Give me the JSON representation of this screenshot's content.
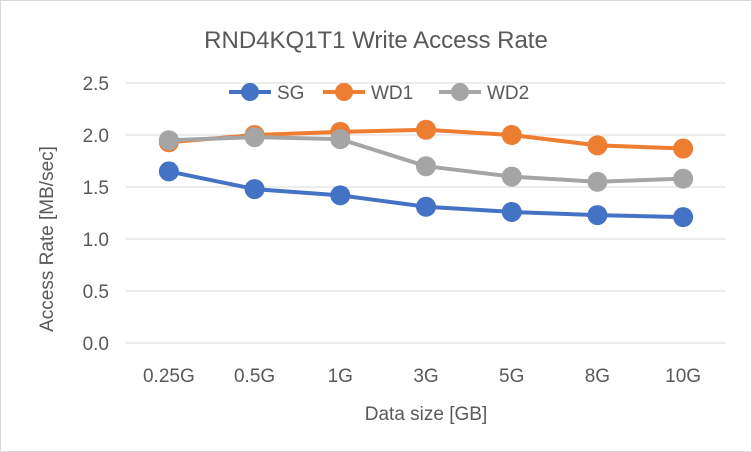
{
  "chart_data": {
    "type": "line",
    "title": "RND4KQ1T1 Write Access Rate",
    "xlabel": "Data size [GB]",
    "ylabel": "Access Rate [MB/sec]",
    "categories": [
      "0.25G",
      "0.5G",
      "1G",
      "3G",
      "5G",
      "8G",
      "10G"
    ],
    "ylim": [
      0,
      2.5
    ],
    "yticks": [
      "0.0",
      "0.5",
      "1.0",
      "1.5",
      "2.0",
      "2.5"
    ],
    "grid": true,
    "legend_position": "top",
    "series": [
      {
        "name": "SG",
        "color": "#4472C4",
        "values": [
          1.65,
          1.48,
          1.42,
          1.31,
          1.26,
          1.23,
          1.21
        ]
      },
      {
        "name": "WD1",
        "color": "#ED7D31",
        "values": [
          1.93,
          2.0,
          2.03,
          2.05,
          2.0,
          1.9,
          1.87
        ]
      },
      {
        "name": "WD2",
        "color": "#A5A5A5",
        "values": [
          1.95,
          1.98,
          1.96,
          1.7,
          1.6,
          1.55,
          1.58
        ]
      }
    ]
  }
}
